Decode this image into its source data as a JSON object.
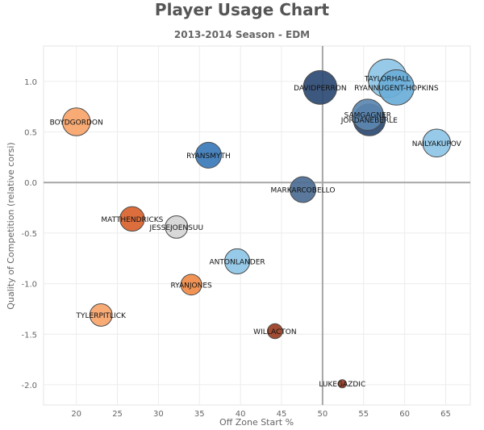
{
  "chart_data": {
    "type": "scatter",
    "title": "Player Usage Chart",
    "subtitle": "2013-2014 Season - EDM",
    "xlabel": "Off Zone Start %",
    "ylabel": "Quality of Competition (relative corsi)",
    "xlim": [
      16,
      68
    ],
    "ylim": [
      -2.2,
      1.35
    ],
    "x_ticks": [
      20,
      25,
      30,
      35,
      40,
      45,
      50,
      55,
      60,
      65
    ],
    "y_ticks": [
      1.0,
      0.5,
      0.0,
      -0.5,
      -1.0,
      -1.5,
      -2.0
    ],
    "y_tick_labels": [
      "1.0",
      "0.5",
      "0.0",
      "-0.5",
      "-1.0",
      "-1.5",
      "-2.0"
    ],
    "reference_lines": {
      "x": 50,
      "y": 0
    },
    "grid": true,
    "points": [
      {
        "label": "TAYLORHALL",
        "x": 57.9,
        "y": 1.03,
        "size": 1.0,
        "color": "#8ec5e6"
      },
      {
        "label": "RYANNUGENT-HOPKINS",
        "x": 59.0,
        "y": 0.94,
        "size": 0.9,
        "color": "#6aaed8"
      },
      {
        "label": "DAVIDPERRON",
        "x": 49.7,
        "y": 0.94,
        "size": 0.85,
        "color": "#2c4a73"
      },
      {
        "label": "SAMGAGNER",
        "x": 55.5,
        "y": 0.67,
        "size": 0.78,
        "color": "#5b87b0"
      },
      {
        "label": "JORDANEBERLE",
        "x": 55.7,
        "y": 0.62,
        "size": 0.8,
        "color": "#2c4a73"
      },
      {
        "label": "BOYDGORDON",
        "x": 20.0,
        "y": 0.6,
        "size": 0.68,
        "color": "#f8a46a"
      },
      {
        "label": "NAILYAKUPOV",
        "x": 63.9,
        "y": 0.39,
        "size": 0.68,
        "color": "#8ec5e6"
      },
      {
        "label": "RYANSMYTH",
        "x": 36.1,
        "y": 0.27,
        "size": 0.62,
        "color": "#3b7ab8"
      },
      {
        "label": "MARKARCOBELLO",
        "x": 47.6,
        "y": -0.07,
        "size": 0.62,
        "color": "#4b6c94"
      },
      {
        "label": "MATTHENDRICKS",
        "x": 26.8,
        "y": -0.36,
        "size": 0.58,
        "color": "#d9622c"
      },
      {
        "label": "JESSEJOENSUU",
        "x": 32.2,
        "y": -0.44,
        "size": 0.52,
        "color": "#d5d5d5"
      },
      {
        "label": "ANTONLANDER",
        "x": 39.6,
        "y": -0.78,
        "size": 0.6,
        "color": "#8ec5e6"
      },
      {
        "label": "RYANJONES",
        "x": 34.0,
        "y": -1.01,
        "size": 0.47,
        "color": "#f08a45"
      },
      {
        "label": "TYLERPITLICK",
        "x": 23.0,
        "y": -1.31,
        "size": 0.52,
        "color": "#f8a46a"
      },
      {
        "label": "WILLACTON",
        "x": 44.2,
        "y": -1.47,
        "size": 0.3,
        "color": "#9a3d22"
      },
      {
        "label": "LUKEGAZDIC",
        "x": 52.4,
        "y": -1.99,
        "size": 0.1,
        "color": "#9a3d22"
      }
    ]
  }
}
